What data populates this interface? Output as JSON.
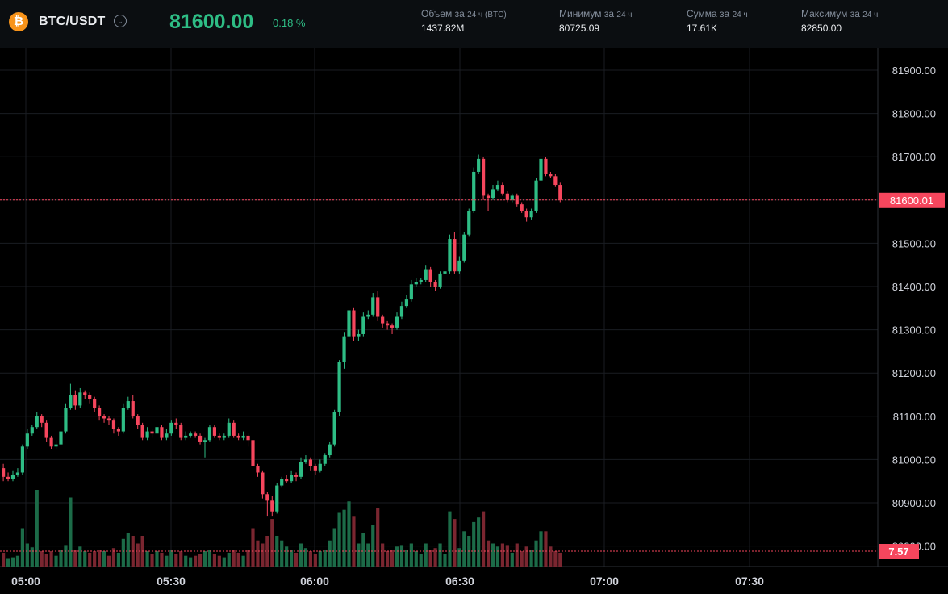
{
  "header": {
    "coin_icon": "bitcoin-icon",
    "coin_symbol": "₿",
    "pair": "BTC/USDT",
    "dropdown_icon": "chevron-down-icon",
    "last_price": "81600.00",
    "change": "0.18 %",
    "stats": [
      {
        "label": "Объем за",
        "sub": "24 ч (BTC)",
        "value": "1437.82M"
      },
      {
        "label": "Минимум за",
        "sub": "24 ч",
        "value": "80725.09"
      },
      {
        "label": "Сумма за",
        "sub": "24 ч",
        "value": "17.61K"
      },
      {
        "label": "Максимум за",
        "sub": "24 ч",
        "value": "82850.00"
      }
    ]
  },
  "colors": {
    "up": "#2ebd85",
    "down": "#f6465d",
    "grid": "#1a1d22",
    "axis_text": "#d1d4dc"
  },
  "chart_data": {
    "type": "candlestick",
    "x_ticks": [
      "05:00",
      "05:30",
      "06:00",
      "06:30",
      "07:00",
      "07:30"
    ],
    "y_ticks": [
      "81900.00",
      "81800.00",
      "81700.00",
      "81600.00",
      "81500.00",
      "81400.00",
      "81300.00",
      "81200.00",
      "81100.00",
      "81000.00",
      "80900.00",
      "80800.00"
    ],
    "y_range": [
      80770,
      81930
    ],
    "current_price_label": "81600.01",
    "current_price": 81600.01,
    "volume_label": "7.57",
    "candles": [
      [
        80980,
        80960,
        80990,
        80950
      ],
      [
        80960,
        80955,
        80970,
        80950
      ],
      [
        80955,
        80965,
        80975,
        80950
      ],
      [
        80965,
        80970,
        80980,
        80960
      ],
      [
        80970,
        81030,
        81035,
        80965
      ],
      [
        81030,
        81060,
        81070,
        81025
      ],
      [
        81060,
        81075,
        81080,
        81055
      ],
      [
        81075,
        81100,
        81110,
        81070
      ],
      [
        81100,
        81085,
        81105,
        81075
      ],
      [
        81085,
        81050,
        81090,
        81040
      ],
      [
        81050,
        81030,
        81055,
        81025
      ],
      [
        81030,
        81035,
        81045,
        81025
      ],
      [
        81035,
        81065,
        81075,
        81030
      ],
      [
        81065,
        81120,
        81130,
        81060
      ],
      [
        81120,
        81150,
        81175,
        81115
      ],
      [
        81150,
        81125,
        81160,
        81115
      ],
      [
        81125,
        81155,
        81165,
        81120
      ],
      [
        81155,
        81150,
        81160,
        81140
      ],
      [
        81150,
        81140,
        81155,
        81130
      ],
      [
        81140,
        81120,
        81145,
        81110
      ],
      [
        81120,
        81100,
        81125,
        81090
      ],
      [
        81100,
        81095,
        81105,
        81085
      ],
      [
        81095,
        81090,
        81100,
        81080
      ],
      [
        81090,
        81070,
        81095,
        81060
      ],
      [
        81070,
        81065,
        81075,
        81055
      ],
      [
        81065,
        81120,
        81130,
        81060
      ],
      [
        81120,
        81135,
        81145,
        81115
      ],
      [
        81135,
        81100,
        81150,
        81095
      ],
      [
        81100,
        81080,
        81105,
        81070
      ],
      [
        81080,
        81050,
        81085,
        81045
      ],
      [
        81050,
        81065,
        81075,
        81045
      ],
      [
        81065,
        81060,
        81070,
        81050
      ],
      [
        81060,
        81075,
        81085,
        81055
      ],
      [
        81075,
        81050,
        81080,
        81045
      ],
      [
        81050,
        81060,
        81070,
        81045
      ],
      [
        81060,
        81085,
        81090,
        81055
      ],
      [
        81085,
        81080,
        81095,
        81070
      ],
      [
        81080,
        81050,
        81085,
        81045
      ],
      [
        81050,
        81055,
        81065,
        81045
      ],
      [
        81055,
        81060,
        81065,
        81050
      ],
      [
        81060,
        81055,
        81065,
        81050
      ],
      [
        81055,
        81040,
        81060,
        81035
      ],
      [
        81040,
        81045,
        81050,
        81005
      ],
      [
        81045,
        81075,
        81080,
        81040
      ],
      [
        81075,
        81055,
        81080,
        81050
      ],
      [
        81055,
        81050,
        81060,
        81045
      ],
      [
        81050,
        81055,
        81060,
        81045
      ],
      [
        81055,
        81085,
        81095,
        81050
      ],
      [
        81085,
        81055,
        81090,
        81050
      ],
      [
        81055,
        81050,
        81060,
        81045
      ],
      [
        81050,
        81055,
        81065,
        81045
      ],
      [
        81055,
        81045,
        81060,
        81030
      ],
      [
        81045,
        80985,
        81050,
        80975
      ],
      [
        80985,
        80970,
        80990,
        80960
      ],
      [
        80970,
        80920,
        80975,
        80910
      ],
      [
        80920,
        80905,
        80925,
        80870
      ],
      [
        80905,
        80880,
        80915,
        80870
      ],
      [
        80880,
        80940,
        80945,
        80875
      ],
      [
        80940,
        80955,
        80960,
        80935
      ],
      [
        80955,
        80950,
        80965,
        80945
      ],
      [
        80950,
        80965,
        80975,
        80945
      ],
      [
        80965,
        80960,
        80970,
        80950
      ],
      [
        80960,
        80995,
        81005,
        80955
      ],
      [
        80995,
        81000,
        81010,
        80990
      ],
      [
        81000,
        80985,
        81005,
        80975
      ],
      [
        80985,
        80975,
        80990,
        80965
      ],
      [
        80975,
        80990,
        81000,
        80970
      ],
      [
        80990,
        81010,
        81015,
        80985
      ],
      [
        81010,
        81035,
        81040,
        81005
      ],
      [
        81035,
        81110,
        81115,
        81030
      ],
      [
        81110,
        81225,
        81230,
        81100
      ],
      [
        81225,
        81285,
        81295,
        81210
      ],
      [
        81285,
        81345,
        81350,
        81280
      ],
      [
        81345,
        81285,
        81350,
        81275
      ],
      [
        81285,
        81290,
        81300,
        81275
      ],
      [
        81290,
        81330,
        81340,
        81285
      ],
      [
        81330,
        81335,
        81345,
        81325
      ],
      [
        81335,
        81375,
        81385,
        81330
      ],
      [
        81375,
        81330,
        81390,
        81320
      ],
      [
        81330,
        81315,
        81335,
        81305
      ],
      [
        81315,
        81310,
        81320,
        81300
      ],
      [
        81310,
        81305,
        81315,
        81290
      ],
      [
        81305,
        81330,
        81340,
        81300
      ],
      [
        81330,
        81355,
        81365,
        81325
      ],
      [
        81355,
        81370,
        81380,
        81350
      ],
      [
        81370,
        81405,
        81415,
        81365
      ],
      [
        81405,
        81410,
        81420,
        81400
      ],
      [
        81410,
        81415,
        81420,
        81405
      ],
      [
        81415,
        81440,
        81450,
        81410
      ],
      [
        81440,
        81410,
        81445,
        81400
      ],
      [
        81410,
        81400,
        81415,
        81390
      ],
      [
        81400,
        81430,
        81435,
        81395
      ],
      [
        81430,
        81435,
        81440,
        81425
      ],
      [
        81435,
        81510,
        81520,
        81430
      ],
      [
        81510,
        81435,
        81525,
        81430
      ],
      [
        81435,
        81460,
        81470,
        81430
      ],
      [
        81460,
        81520,
        81525,
        81455
      ],
      [
        81520,
        81575,
        81580,
        81515
      ],
      [
        81575,
        81665,
        81675,
        81570
      ],
      [
        81665,
        81695,
        81705,
        81660
      ],
      [
        81695,
        81610,
        81700,
        81600
      ],
      [
        81610,
        81605,
        81615,
        81575
      ],
      [
        81605,
        81625,
        81635,
        81600
      ],
      [
        81625,
        81635,
        81645,
        81620
      ],
      [
        81635,
        81615,
        81640,
        81610
      ],
      [
        81615,
        81600,
        81620,
        81595
      ],
      [
        81600,
        81610,
        81615,
        81595
      ],
      [
        81610,
        81590,
        81615,
        81585
      ],
      [
        81590,
        81575,
        81595,
        81570
      ],
      [
        81575,
        81560,
        81580,
        81550
      ],
      [
        81560,
        81575,
        81580,
        81555
      ],
      [
        81575,
        81645,
        81650,
        81570
      ],
      [
        81645,
        81695,
        81710,
        81640
      ],
      [
        81695,
        81660,
        81700,
        81655
      ],
      [
        81660,
        81655,
        81665,
        81650
      ],
      [
        81655,
        81635,
        81660,
        81630
      ],
      [
        81635,
        81600,
        81640,
        81595
      ]
    ],
    "volumes": [
      [
        0.18,
        "down"
      ],
      [
        0.1,
        "up"
      ],
      [
        0.12,
        "up"
      ],
      [
        0.14,
        "up"
      ],
      [
        0.5,
        "up"
      ],
      [
        0.3,
        "up"
      ],
      [
        0.25,
        "up"
      ],
      [
        1.0,
        "up"
      ],
      [
        0.2,
        "down"
      ],
      [
        0.16,
        "down"
      ],
      [
        0.2,
        "down"
      ],
      [
        0.14,
        "up"
      ],
      [
        0.22,
        "up"
      ],
      [
        0.28,
        "up"
      ],
      [
        0.9,
        "up"
      ],
      [
        0.22,
        "down"
      ],
      [
        0.26,
        "up"
      ],
      [
        0.2,
        "up"
      ],
      [
        0.18,
        "down"
      ],
      [
        0.2,
        "down"
      ],
      [
        0.22,
        "down"
      ],
      [
        0.2,
        "up"
      ],
      [
        0.14,
        "down"
      ],
      [
        0.24,
        "down"
      ],
      [
        0.18,
        "up"
      ],
      [
        0.36,
        "up"
      ],
      [
        0.44,
        "up"
      ],
      [
        0.4,
        "down"
      ],
      [
        0.3,
        "down"
      ],
      [
        0.4,
        "down"
      ],
      [
        0.2,
        "up"
      ],
      [
        0.16,
        "down"
      ],
      [
        0.2,
        "up"
      ],
      [
        0.18,
        "down"
      ],
      [
        0.14,
        "up"
      ],
      [
        0.22,
        "up"
      ],
      [
        0.16,
        "down"
      ],
      [
        0.2,
        "down"
      ],
      [
        0.14,
        "up"
      ],
      [
        0.12,
        "up"
      ],
      [
        0.14,
        "down"
      ],
      [
        0.16,
        "down"
      ],
      [
        0.2,
        "up"
      ],
      [
        0.22,
        "up"
      ],
      [
        0.16,
        "down"
      ],
      [
        0.14,
        "down"
      ],
      [
        0.12,
        "up"
      ],
      [
        0.18,
        "up"
      ],
      [
        0.22,
        "down"
      ],
      [
        0.18,
        "down"
      ],
      [
        0.14,
        "up"
      ],
      [
        0.22,
        "down"
      ],
      [
        0.5,
        "down"
      ],
      [
        0.34,
        "down"
      ],
      [
        0.3,
        "down"
      ],
      [
        0.4,
        "down"
      ],
      [
        0.62,
        "down"
      ],
      [
        0.4,
        "up"
      ],
      [
        0.34,
        "up"
      ],
      [
        0.26,
        "up"
      ],
      [
        0.22,
        "up"
      ],
      [
        0.18,
        "down"
      ],
      [
        0.3,
        "up"
      ],
      [
        0.24,
        "up"
      ],
      [
        0.2,
        "down"
      ],
      [
        0.16,
        "down"
      ],
      [
        0.2,
        "up"
      ],
      [
        0.22,
        "up"
      ],
      [
        0.34,
        "up"
      ],
      [
        0.5,
        "up"
      ],
      [
        0.7,
        "up"
      ],
      [
        0.74,
        "up"
      ],
      [
        0.85,
        "up"
      ],
      [
        0.66,
        "down"
      ],
      [
        0.3,
        "up"
      ],
      [
        0.44,
        "up"
      ],
      [
        0.3,
        "up"
      ],
      [
        0.54,
        "up"
      ],
      [
        0.76,
        "down"
      ],
      [
        0.3,
        "down"
      ],
      [
        0.2,
        "down"
      ],
      [
        0.22,
        "down"
      ],
      [
        0.26,
        "up"
      ],
      [
        0.28,
        "up"
      ],
      [
        0.22,
        "up"
      ],
      [
        0.3,
        "up"
      ],
      [
        0.2,
        "up"
      ],
      [
        0.16,
        "up"
      ],
      [
        0.3,
        "up"
      ],
      [
        0.22,
        "down"
      ],
      [
        0.24,
        "down"
      ],
      [
        0.3,
        "up"
      ],
      [
        0.16,
        "up"
      ],
      [
        0.72,
        "up"
      ],
      [
        0.62,
        "down"
      ],
      [
        0.24,
        "up"
      ],
      [
        0.46,
        "up"
      ],
      [
        0.4,
        "up"
      ],
      [
        0.58,
        "up"
      ],
      [
        0.64,
        "up"
      ],
      [
        0.72,
        "down"
      ],
      [
        0.34,
        "down"
      ],
      [
        0.3,
        "up"
      ],
      [
        0.26,
        "up"
      ],
      [
        0.3,
        "down"
      ],
      [
        0.28,
        "down"
      ],
      [
        0.18,
        "up"
      ],
      [
        0.3,
        "down"
      ],
      [
        0.2,
        "down"
      ],
      [
        0.26,
        "down"
      ],
      [
        0.22,
        "up"
      ],
      [
        0.34,
        "up"
      ],
      [
        0.46,
        "up"
      ],
      [
        0.46,
        "down"
      ],
      [
        0.26,
        "down"
      ],
      [
        0.2,
        "down"
      ],
      [
        0.18,
        "down"
      ]
    ]
  }
}
